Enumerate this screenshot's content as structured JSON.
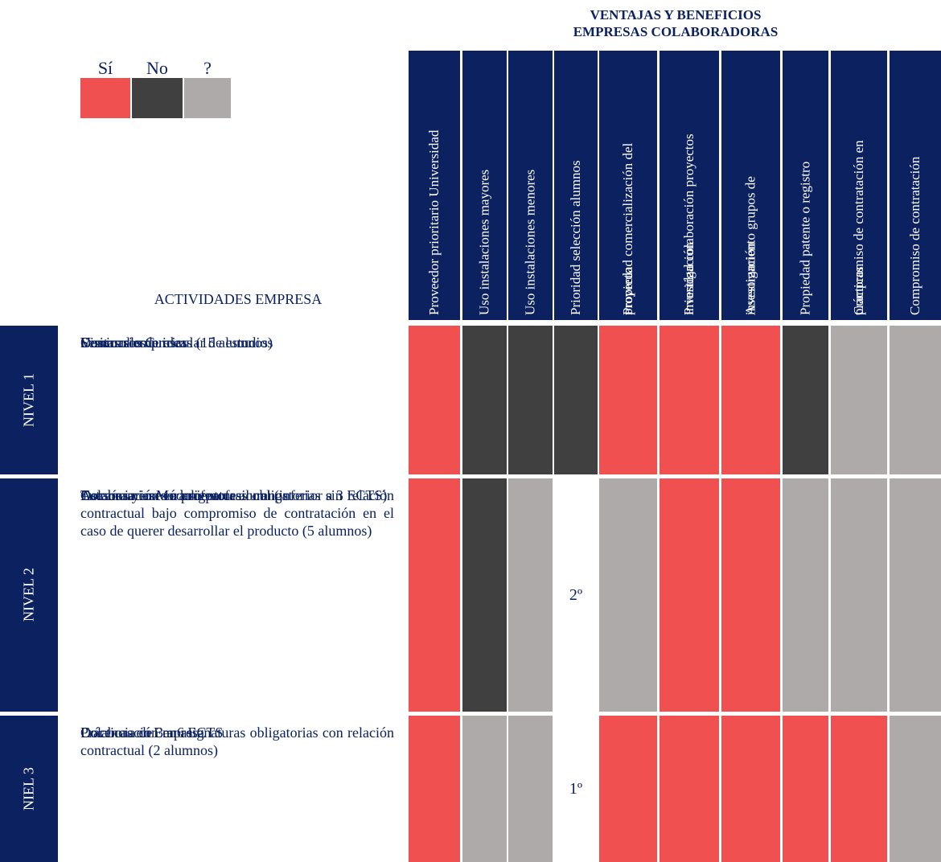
{
  "legend": [
    {
      "label": "Sí",
      "color": "#f05150"
    },
    {
      "label": "No",
      "color": "#404040"
    },
    {
      "label": "?",
      "color": "#aeaaaa"
    }
  ],
  "title": "VENTAJAS Y BENEFICIOS EMPRESAS COLABORADORAS",
  "activities_header": "ACTIVIDADES EMPRESA",
  "header_color": "#0b2160",
  "columns": [
    [
      "Proveedor prioritario Universidad"
    ],
    [
      "Uso instalaciones mayores"
    ],
    [
      "Uso instalaciones menores"
    ],
    [
      "Prioridad selección alumnos"
    ],
    [
      "Propiedad  comercialización del",
      "proyecto"
    ],
    [
      "Prioridad colaboración proyectos",
      "investigación"
    ],
    [
      "Asesoramiento grupos de",
      "investigación"
    ],
    [
      "Propiedad patente o registro"
    ],
    [
      "Compromiso de contratación en",
      "prácticas"
    ],
    [
      "Compromiso de contratación"
    ]
  ],
  "rows": [
    {
      "level": "NIVEL 1",
      "activities": [
        "Concursos de ideas (15 alumnos)",
        "Visitas a empresas",
        "Seminarios",
        "Desarrollo Curricular de estudios"
      ],
      "cells": [
        "Sí",
        "No",
        "No",
        "No",
        "Sí",
        "Sí",
        "Sí",
        "No",
        "?",
        "?"
      ]
    },
    {
      "level": "NIVEL 2",
      "activities": [
        "Colaboración en asignaturas obligatorias sin relación contractual bajo compromiso de contratación en el caso de querer desarrollar el producto (5 alumnos)",
        "Asesoramiento a profesores",
        "Docencia en Módulo profesional (inferior a 3 ECTS)",
        "Tutorías y asesoramiento a alumnos"
      ],
      "cells": [
        "Sí",
        "No",
        "?",
        "2º",
        "?",
        "Sí",
        "Sí",
        "?",
        "?",
        "?"
      ]
    },
    {
      "level": "NIEL 3",
      "activities": [
        "Colaboración en asignaturas obligatorias con relación contractual (2 alumnos)",
        "Docencia de 3 a 6 ECTS",
        "Prácticas en Empresa"
      ],
      "cells": [
        "Sí",
        "?",
        "?",
        "1º",
        "Sí",
        "Sí",
        "Sí",
        "Sí",
        "Sí",
        "?"
      ]
    }
  ]
}
